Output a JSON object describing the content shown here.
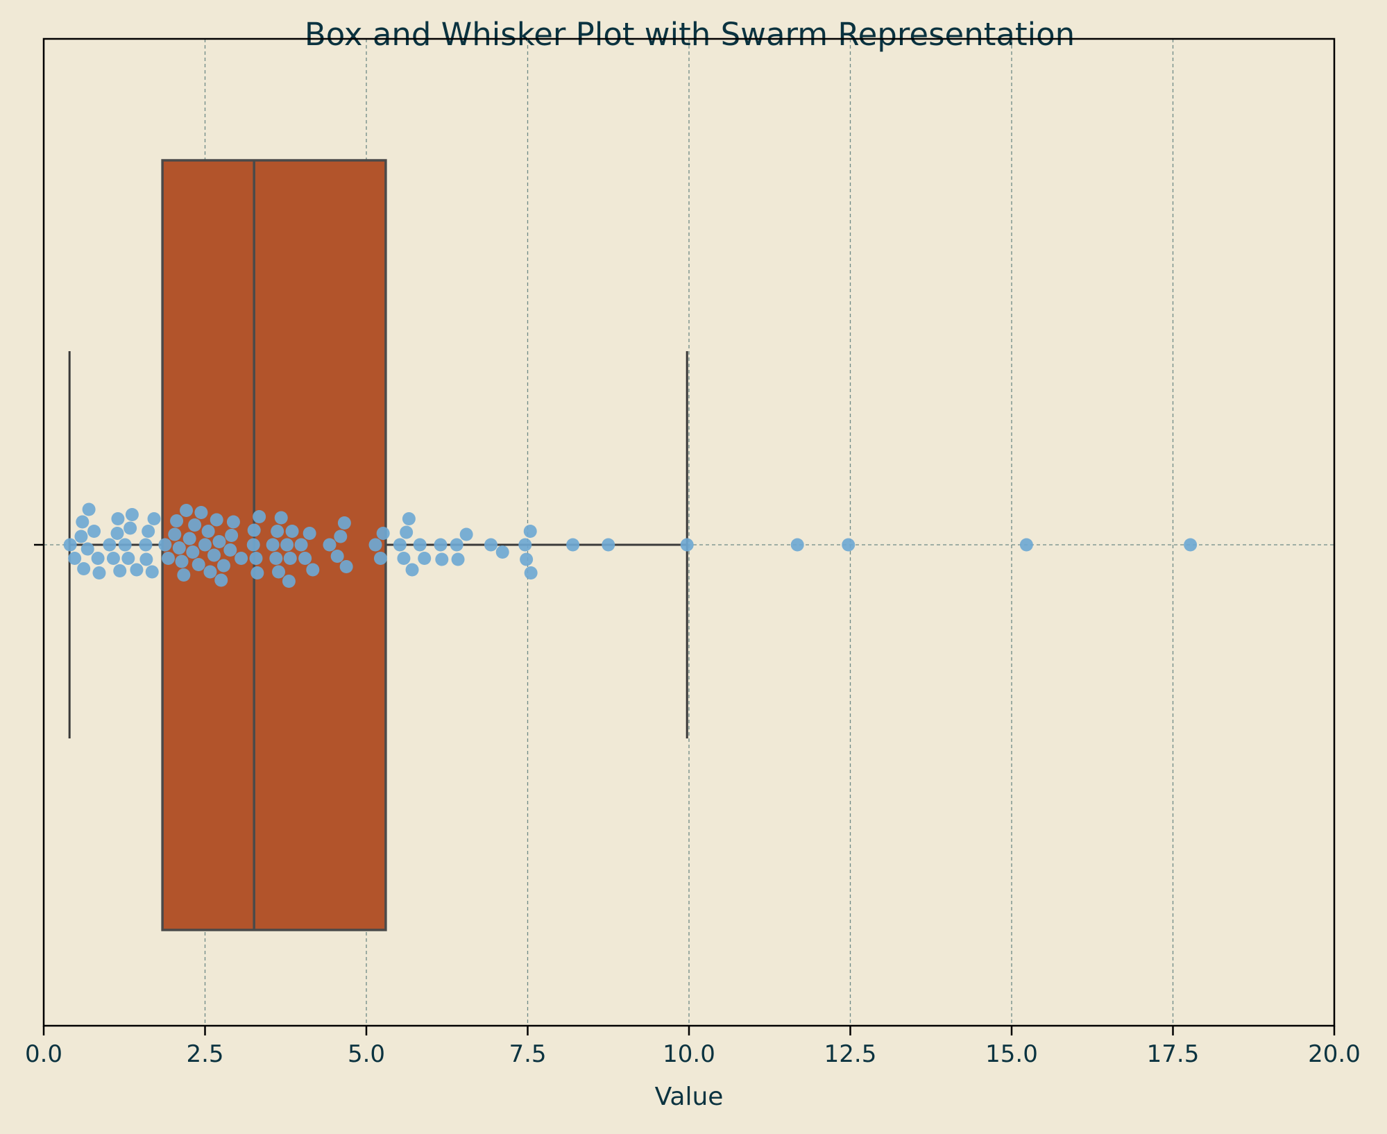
{
  "chart_data": {
    "type": "box",
    "title": "Box and Whisker Plot with Swarm Representation",
    "xlabel": "Value",
    "ylabel": "",
    "xlim": [
      0,
      20
    ],
    "xticks": [
      "0.0",
      "2.5",
      "5.0",
      "7.5",
      "10.0",
      "12.5",
      "15.0",
      "17.5",
      "20.0"
    ],
    "grid": true,
    "box": {
      "whisker_low": 0.4,
      "q1": 1.84,
      "median": 3.26,
      "q3": 5.3,
      "whisker_high": 9.97
    },
    "swarm_values": [
      0.41,
      0.48,
      0.58,
      0.6,
      0.62,
      0.68,
      0.7,
      0.78,
      0.84,
      0.86,
      1.02,
      1.08,
      1.14,
      1.15,
      1.18,
      1.26,
      1.31,
      1.34,
      1.37,
      1.44,
      1.58,
      1.59,
      1.62,
      1.68,
      1.71,
      1.88,
      1.93,
      2.03,
      2.06,
      2.1,
      2.14,
      2.17,
      2.21,
      2.26,
      2.31,
      2.34,
      2.4,
      2.44,
      2.5,
      2.55,
      2.58,
      2.64,
      2.68,
      2.72,
      2.75,
      2.79,
      2.89,
      2.91,
      2.94,
      3.06,
      3.25,
      3.26,
      3.29,
      3.31,
      3.34,
      3.55,
      3.6,
      3.62,
      3.64,
      3.68,
      3.77,
      3.8,
      3.82,
      3.85,
      3.99,
      4.05,
      4.12,
      4.17,
      4.43,
      4.55,
      4.6,
      4.66,
      4.69,
      5.14,
      5.22,
      5.26,
      5.52,
      5.58,
      5.62,
      5.66,
      5.71,
      5.83,
      5.9,
      6.15,
      6.17,
      6.4,
      6.42,
      6.55,
      6.93,
      7.11,
      7.46,
      7.48,
      7.54,
      7.55,
      8.2,
      8.75,
      9.97,
      11.68,
      12.47,
      15.23,
      17.77
    ],
    "colors": {
      "background": "#F0E9D6",
      "box_fill": "#B2542B",
      "box_edge": "#4A4A4A",
      "points": "#6FA8D3",
      "grid": "#6E8A86",
      "text": "#0B3340"
    }
  }
}
